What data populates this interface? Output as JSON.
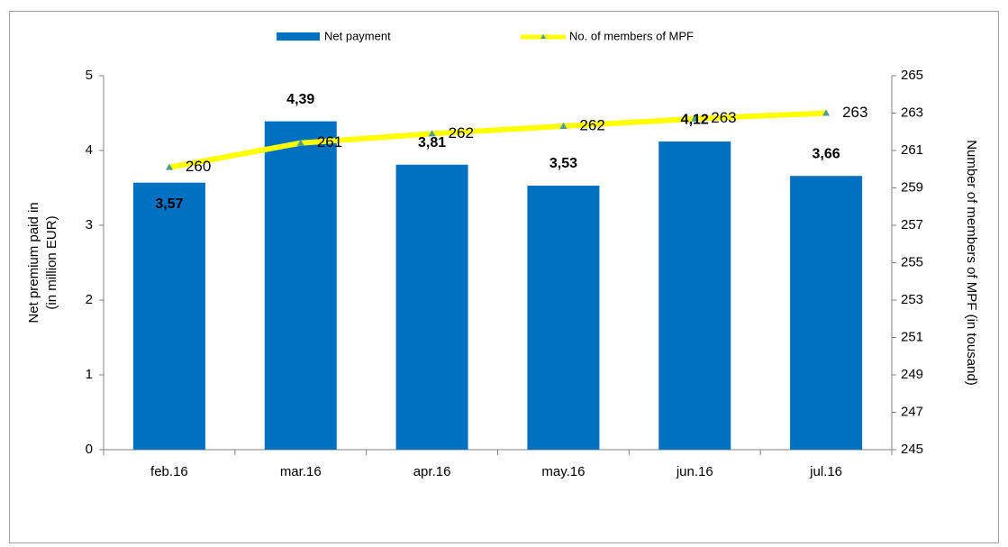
{
  "chart_data": {
    "type": "bar_line",
    "categories": [
      "feb.16",
      "mar.16",
      "apr.16",
      "may.16",
      "jun.16",
      "jul.16"
    ],
    "series": [
      {
        "name": "Net payment",
        "type": "bar",
        "color": "#0070c0",
        "axis": "y",
        "values": [
          3.57,
          4.39,
          3.81,
          3.53,
          4.12,
          3.66
        ],
        "value_labels": [
          "3,57",
          "4,39",
          "3,81",
          "3,53",
          "4,12",
          "3,66"
        ]
      },
      {
        "name": "No. of members of MPF",
        "type": "line",
        "color": "#ffff00",
        "marker_color": "#4f9a94",
        "axis": "y2",
        "values": [
          260.1,
          261.4,
          261.9,
          262.3,
          262.7,
          263.0
        ],
        "value_labels": [
          "260",
          "261",
          "262",
          "262",
          "263",
          "263"
        ]
      }
    ],
    "y_label": [
      "Net premium paid in",
      "(in million EUR)"
    ],
    "y2_label": "Number of members of MPF  (in tousand)",
    "ylim": [
      0,
      5
    ],
    "yticks": [
      0,
      1,
      2,
      3,
      4,
      5
    ],
    "y2lim": [
      245,
      265
    ],
    "y2ticks": [
      245,
      247,
      249,
      251,
      253,
      255,
      257,
      259,
      261,
      263,
      265
    ],
    "legend": "top"
  }
}
